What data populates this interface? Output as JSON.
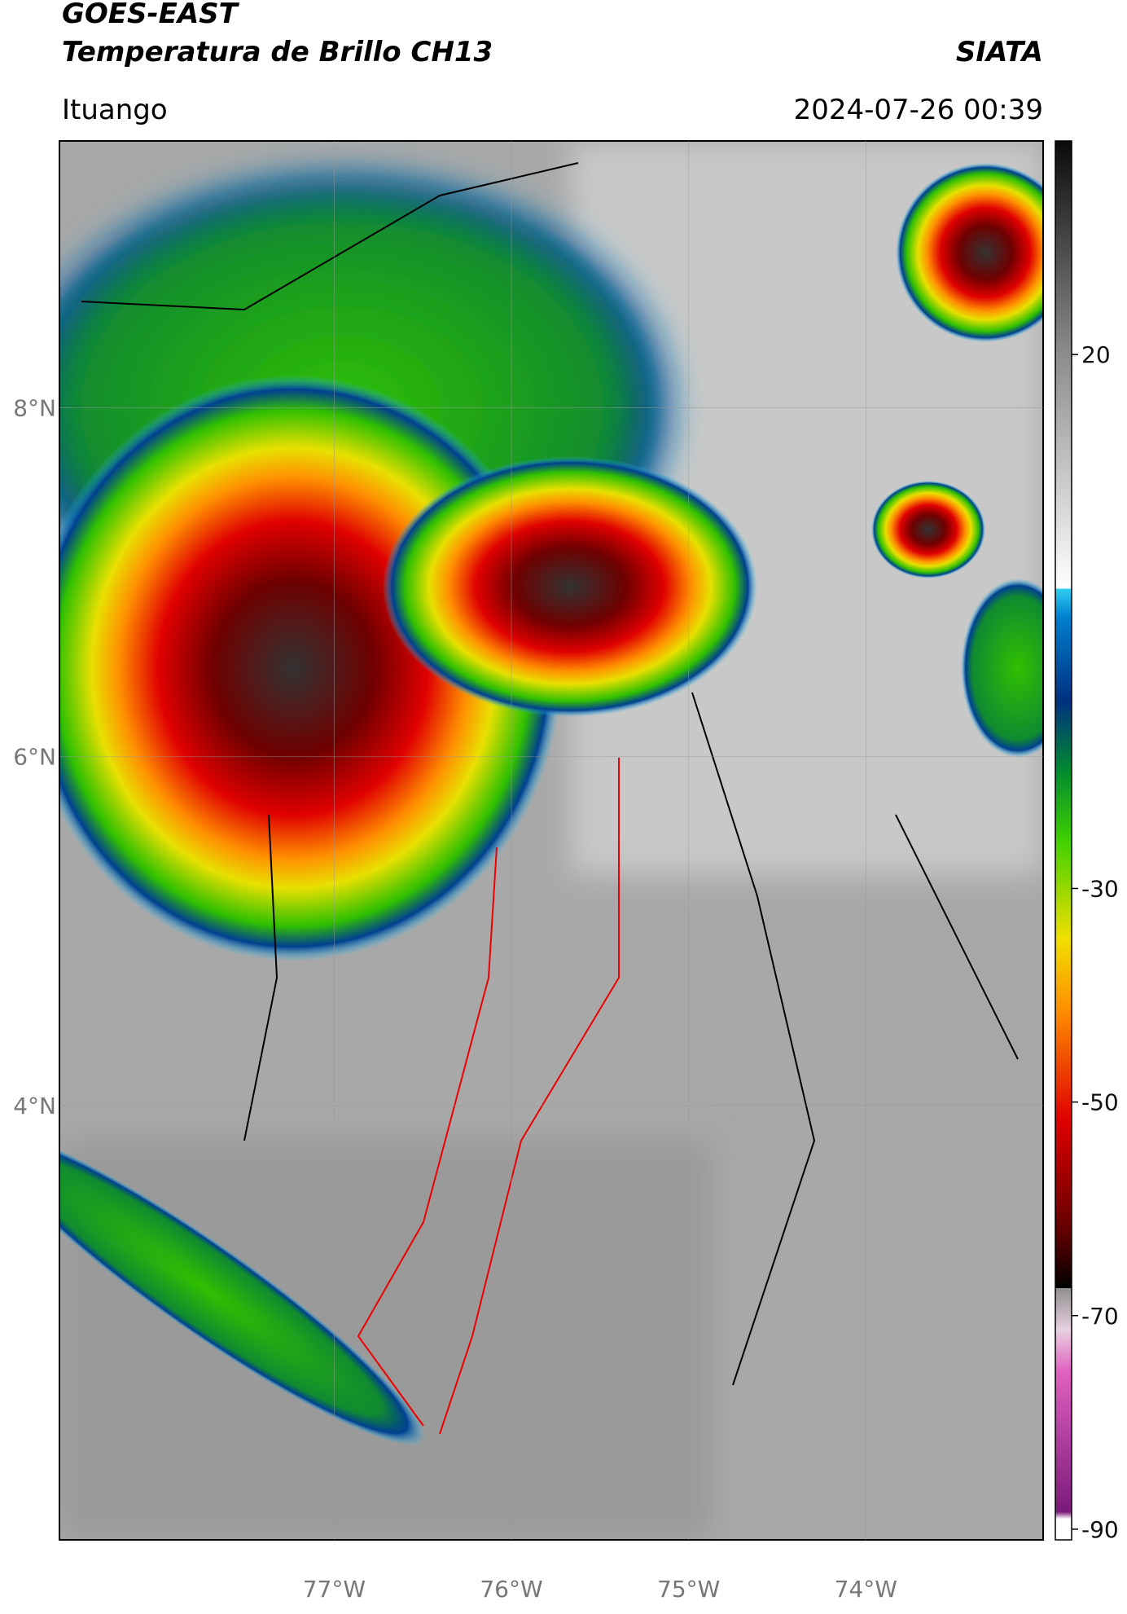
{
  "header": {
    "title": "GOES-EAST",
    "subtitle": "Temperatura de Brillo CH13",
    "brand": "SIATA",
    "location": "Ituango",
    "datetime": "2024-07-26 00:39"
  },
  "map": {
    "xlim": [
      -78.55,
      -73.0
    ],
    "ylim": [
      1.51,
      9.53
    ],
    "xticks": [
      {
        "value": -77,
        "label": "77°W"
      },
      {
        "value": -76,
        "label": "76°W"
      },
      {
        "value": -75,
        "label": "75°W"
      },
      {
        "value": -74,
        "label": "74°W"
      }
    ],
    "yticks": [
      {
        "value": 4,
        "label": "4°N"
      },
      {
        "value": 6,
        "label": "6°N"
      },
      {
        "value": 8,
        "label": "8°N"
      }
    ]
  },
  "colorbar": {
    "lim": [
      -91,
      40
    ],
    "ticks": [
      -90,
      -70,
      -50,
      -30,
      20
    ]
  }
}
